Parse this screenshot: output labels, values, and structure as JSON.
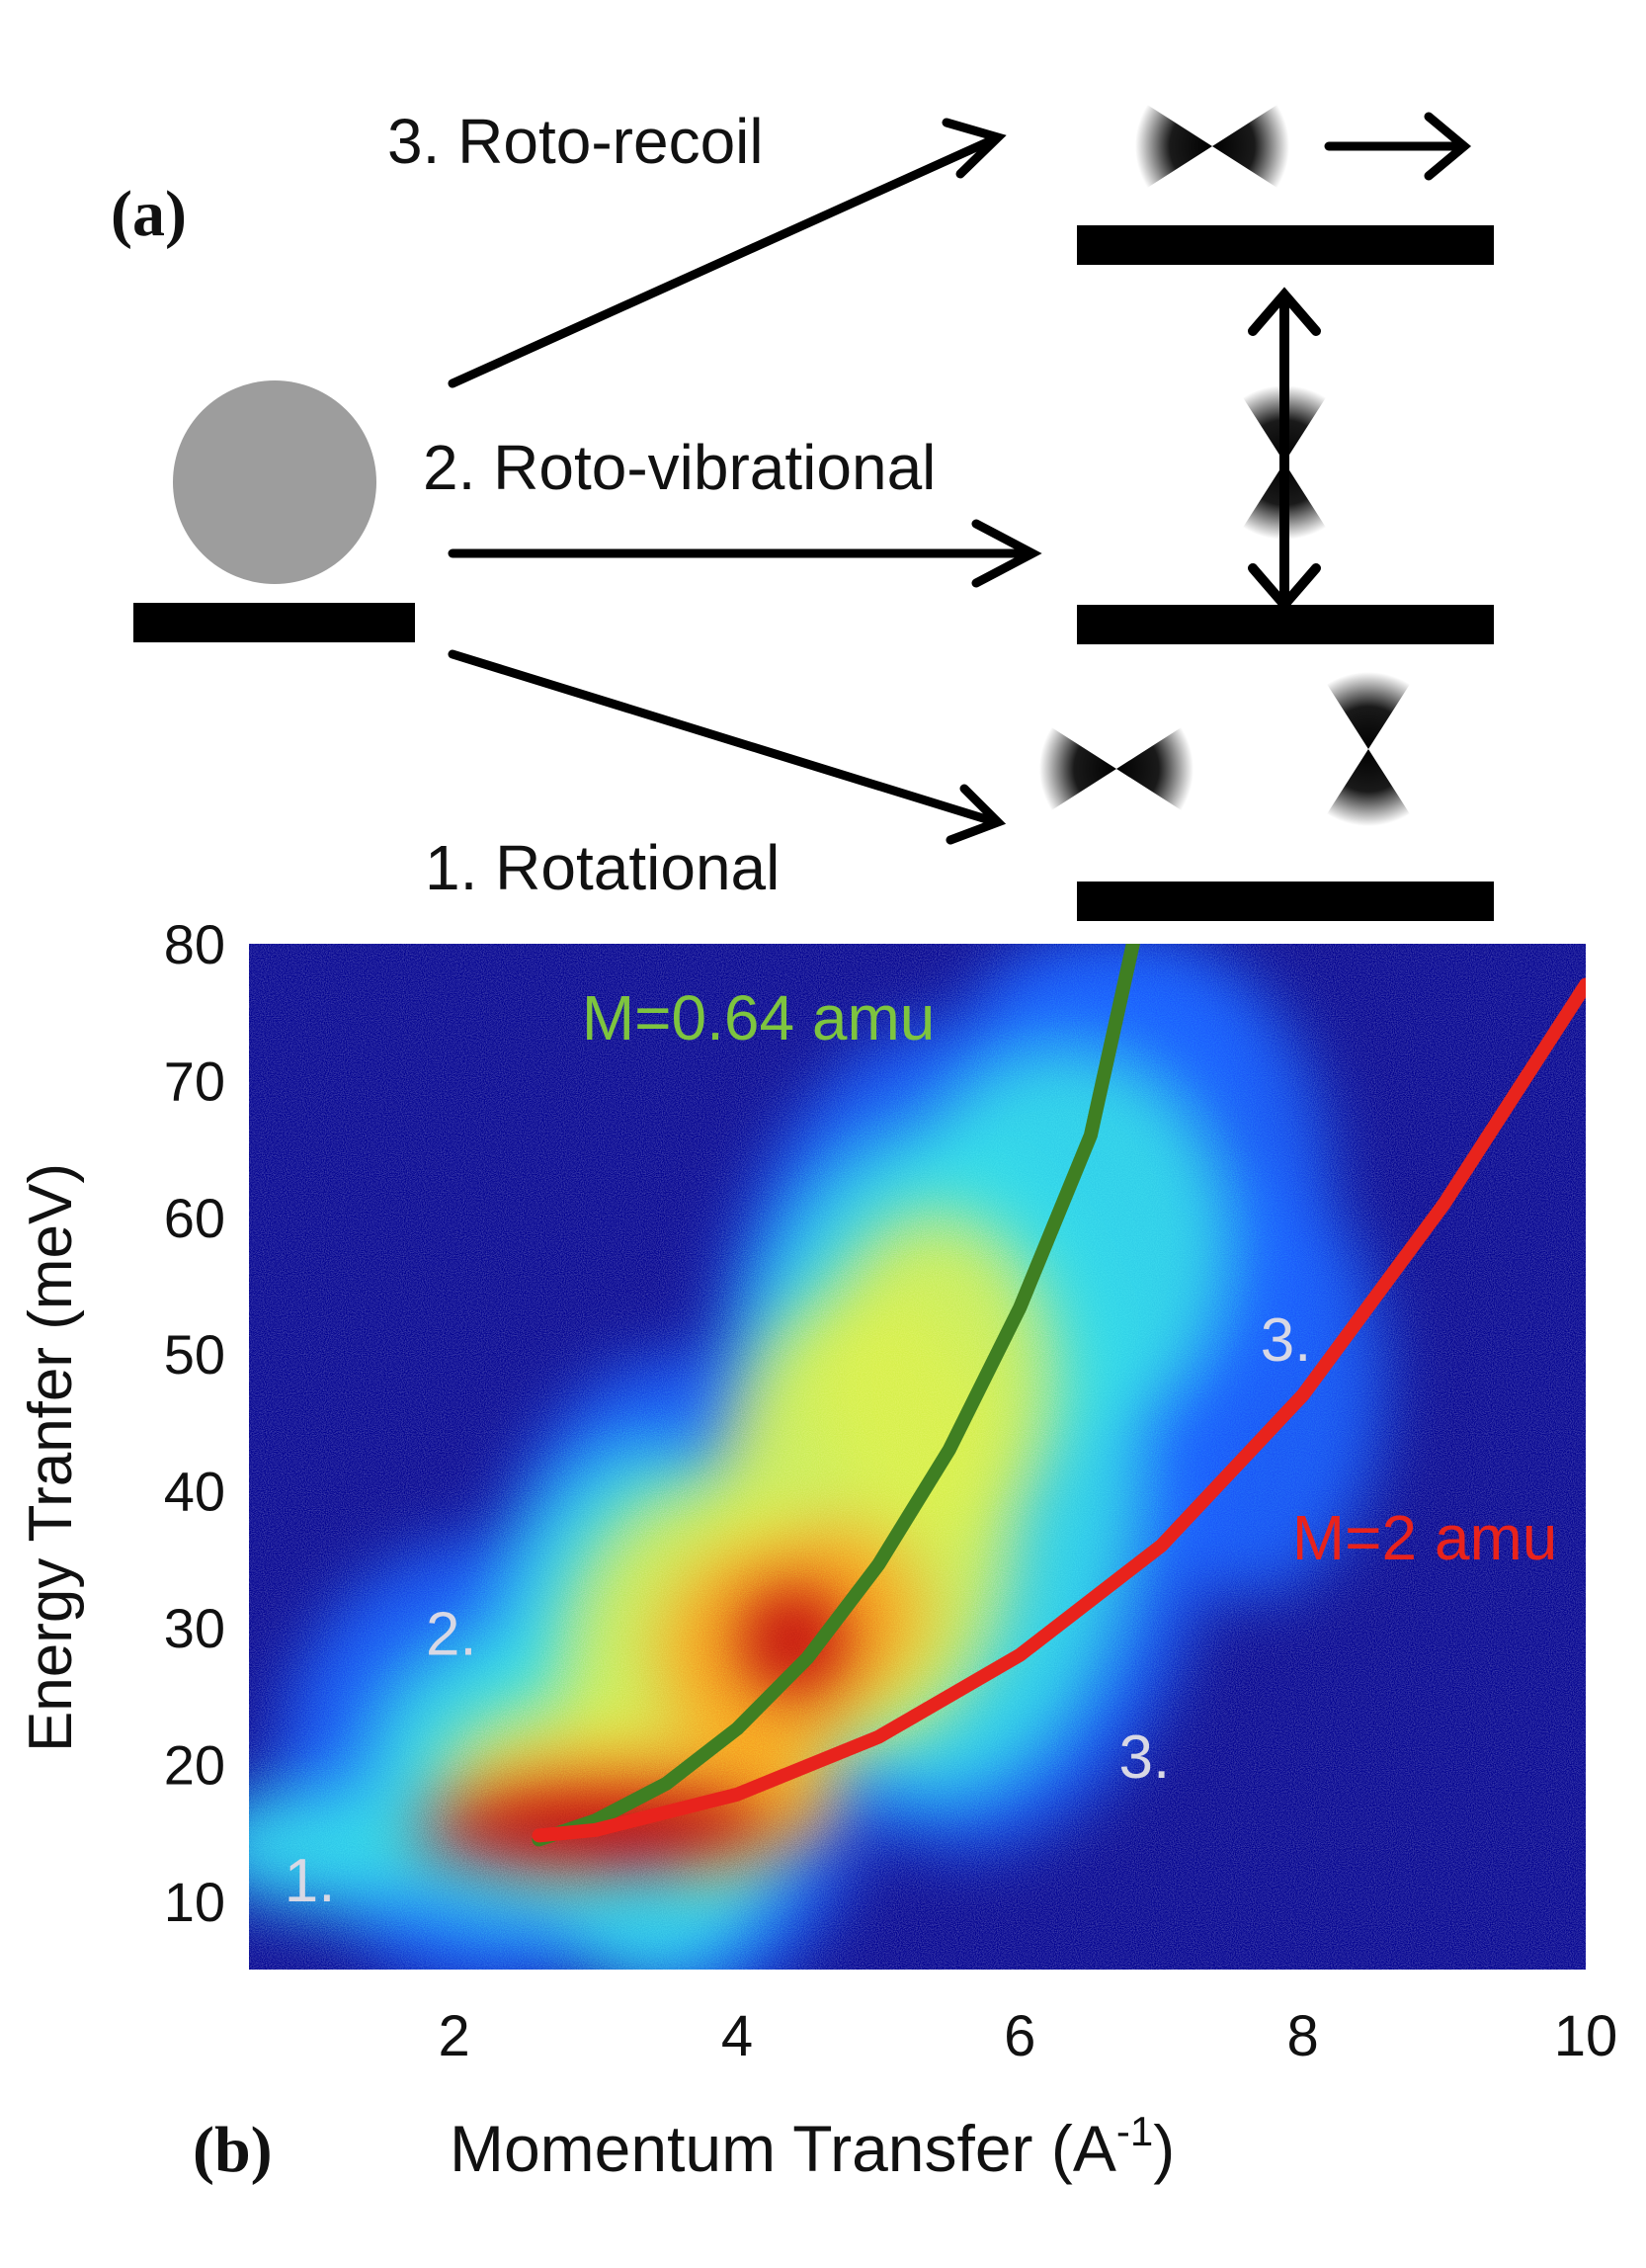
{
  "panel_a": {
    "label": "(a)",
    "transitions": [
      {
        "label": "3. Roto-recoil"
      },
      {
        "label": "2. Roto-vibrational"
      },
      {
        "label": "1. Rotational"
      }
    ]
  },
  "panel_b": {
    "label": "(b)",
    "annotations": [
      {
        "text": "1.",
        "x": 0.8,
        "y": 10
      },
      {
        "text": "2.",
        "x": 1.8,
        "y": 28
      },
      {
        "text": "3.",
        "x": 7.7,
        "y": 49.5
      },
      {
        "text": "3.",
        "x": 6.7,
        "y": 19
      }
    ],
    "curve_labels": [
      {
        "text": "M=0.64 amu",
        "color": "#7ec43f",
        "x": 5.4,
        "y": 73
      },
      {
        "text": "M=2 amu",
        "color": "#e8231c",
        "x": 9.8,
        "y": 35
      }
    ]
  },
  "colors": {
    "plot_background": "#00008f",
    "green_curve": "#3f7f22",
    "red_curve": "#e8231c",
    "annotation": "#d8d8e4"
  },
  "chart_data": {
    "type": "heatmap",
    "title": "",
    "xlabel": "Momentum Transfer (A-1)",
    "xlabel_base": "Momentum Transfer (A",
    "xlabel_sup": "-1",
    "xlabel_close": ")",
    "ylabel": "Energy Tranfer (meV)",
    "xlim": [
      0.55,
      10
    ],
    "ylim": [
      5,
      80
    ],
    "xticks": [
      2,
      4,
      6,
      8,
      10
    ],
    "yticks": [
      10,
      20,
      30,
      40,
      50,
      60,
      70,
      80
    ],
    "colormap": "jet",
    "grid": false,
    "series": [
      {
        "name": "M=0.64 amu",
        "color": "#3f7f22",
        "mass_amu": 0.64,
        "x": [
          2.6,
          3.0,
          3.5,
          4.0,
          4.5,
          5.0,
          5.5,
          6.0,
          6.5,
          6.8
        ],
        "y": [
          14.5,
          15.9,
          18.6,
          22.6,
          27.8,
          34.6,
          43.0,
          53.4,
          66.0,
          80.0
        ]
      },
      {
        "name": "M=2 amu",
        "color": "#e8231c",
        "mass_amu": 2,
        "x": [
          2.6,
          3.0,
          4.0,
          5.0,
          6.0,
          7.0,
          8.0,
          9.0,
          10.0
        ],
        "y": [
          14.8,
          15.2,
          17.8,
          22.0,
          28.0,
          36.0,
          47.0,
          61.0,
          77.0
        ]
      }
    ]
  }
}
